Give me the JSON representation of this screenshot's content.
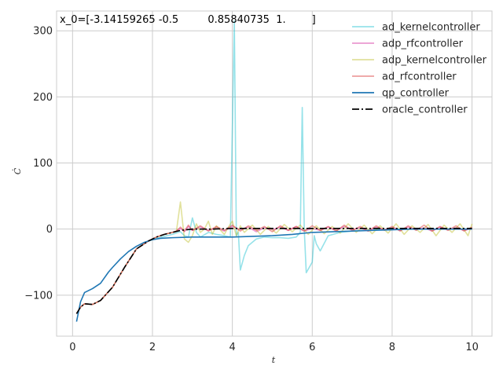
{
  "chart_data": {
    "type": "line",
    "annotation": "x_0=[-3.14159265 -0.5         0.85840735  1.        ]",
    "xlabel": "t",
    "ylabel": "Ċ",
    "xlim": [
      -0.4,
      10.5
    ],
    "ylim": [
      -162,
      330
    ],
    "xticks": [
      0,
      2,
      4,
      6,
      8,
      10
    ],
    "yticks": [
      -100,
      0,
      100,
      200,
      300
    ],
    "xtick_labels": [
      "0",
      "2",
      "4",
      "6",
      "8",
      "10"
    ],
    "ytick_labels": [
      "−100",
      "0",
      "100",
      "200",
      "300"
    ],
    "grid": true,
    "legend_position": "top-right",
    "series": [
      {
        "name": "ad_kernelcontroller",
        "color": "#17becf",
        "alpha": 0.45,
        "dash": "solid",
        "x": [
          0.1,
          0.2,
          0.3,
          0.5,
          0.7,
          1.0,
          1.3,
          1.6,
          1.9,
          2.1,
          2.3,
          2.5,
          2.7,
          2.8,
          2.9,
          3.0,
          3.1,
          3.2,
          3.4,
          3.6,
          3.8,
          3.95,
          4.05,
          4.1,
          4.15,
          4.2,
          4.3,
          4.4,
          4.6,
          4.8,
          5.0,
          5.2,
          5.4,
          5.6,
          5.7,
          5.75,
          5.8,
          5.85,
          6.0,
          6.05,
          6.1,
          6.2,
          6.4,
          6.7,
          7.0,
          7.5,
          8.0,
          8.5,
          9.0,
          9.5,
          10.0
        ],
        "y": [
          -128,
          -118,
          -113,
          -114,
          -108,
          -88,
          -58,
          -30,
          -18,
          -14,
          -11,
          -8,
          -4,
          -10,
          -12,
          17,
          -5,
          -12,
          -5,
          -8,
          -10,
          -12,
          315,
          -10,
          -5,
          -62,
          -40,
          -25,
          -15,
          -12,
          -13,
          -13,
          -14,
          -12,
          -5,
          184,
          0,
          -66,
          -50,
          -10,
          -22,
          -33,
          -10,
          -5,
          -3,
          -1,
          0,
          0,
          0,
          0,
          0
        ]
      },
      {
        "name": "adp_rfcontroller",
        "color": "#e377c2",
        "alpha": 0.75,
        "dash": "solid",
        "x": [
          0.1,
          0.2,
          0.3,
          0.5,
          0.7,
          1.0,
          1.3,
          1.6,
          1.9,
          2.1,
          2.3,
          2.5,
          2.6,
          2.7,
          2.8,
          2.9,
          3.0,
          3.2,
          3.4,
          3.6,
          3.8,
          4.0,
          4.2,
          4.4,
          4.6,
          4.8,
          5.0,
          5.2,
          5.4,
          5.6,
          5.8,
          6.0,
          6.2,
          6.4,
          6.6,
          6.8,
          7.0,
          7.2,
          7.4,
          7.6,
          7.8,
          8.0,
          8.2,
          8.4,
          8.6,
          8.8,
          9.0,
          9.2,
          9.4,
          9.6,
          9.8,
          10.0
        ],
        "y": [
          -128,
          -118,
          -113,
          -114,
          -108,
          -88,
          -58,
          -30,
          -18,
          -12,
          -8,
          -5,
          -3,
          1,
          -4,
          4,
          -2,
          3,
          -2,
          2,
          -3,
          4,
          -1,
          3,
          -4,
          2,
          -1,
          3,
          -2,
          4,
          -3,
          1,
          -2,
          3,
          -2,
          4,
          -1,
          2,
          -3,
          3,
          -1,
          2,
          -2,
          3,
          -1,
          2,
          -3,
          3,
          -1,
          2,
          -2,
          1
        ]
      },
      {
        "name": "adp_kernelcontroller",
        "color": "#bcbd22",
        "alpha": 0.45,
        "dash": "solid",
        "x": [
          0.1,
          0.2,
          0.3,
          0.5,
          0.7,
          1.0,
          1.3,
          1.6,
          1.9,
          2.1,
          2.3,
          2.5,
          2.6,
          2.7,
          2.8,
          2.9,
          3.0,
          3.1,
          3.2,
          3.3,
          3.4,
          3.5,
          3.6,
          3.8,
          3.9,
          4.0,
          4.1,
          4.2,
          4.3,
          4.5,
          4.7,
          4.9,
          5.1,
          5.3,
          5.5,
          5.7,
          5.9,
          6.1,
          6.3,
          6.5,
          6.7,
          6.9,
          7.1,
          7.3,
          7.5,
          7.7,
          7.9,
          8.1,
          8.3,
          8.5,
          8.7,
          8.9,
          9.1,
          9.3,
          9.5,
          9.7,
          9.9,
          10.0
        ],
        "y": [
          -128,
          -118,
          -113,
          -114,
          -108,
          -88,
          -58,
          -30,
          -18,
          -12,
          -8,
          -5,
          -3,
          41,
          -15,
          -20,
          -10,
          8,
          -5,
          0,
          12,
          -8,
          5,
          -8,
          3,
          12,
          -10,
          5,
          -5,
          6,
          -8,
          4,
          -6,
          7,
          -4,
          6,
          -8,
          5,
          -7,
          4,
          -6,
          8,
          -5,
          6,
          -7,
          5,
          -6,
          8,
          -8,
          5,
          -5,
          7,
          -10,
          6,
          -5,
          8,
          -10,
          8
        ]
      },
      {
        "name": "ad_rfcontroller",
        "color": "#d62728",
        "alpha": 0.45,
        "dash": "solid",
        "x": [
          0.1,
          0.2,
          0.3,
          0.5,
          0.7,
          1.0,
          1.3,
          1.6,
          1.9,
          2.1,
          2.3,
          2.5,
          2.6,
          2.7,
          2.8,
          2.9,
          3.0,
          3.2,
          3.4,
          3.6,
          3.8,
          4.0,
          4.2,
          4.4,
          4.6,
          4.8,
          5.0,
          5.2,
          5.4,
          5.6,
          5.8,
          6.0,
          6.2,
          6.4,
          6.6,
          6.8,
          7.0,
          7.2,
          7.4,
          7.6,
          7.8,
          8.0,
          8.2,
          8.4,
          8.6,
          8.8,
          9.0,
          9.2,
          9.4,
          9.6,
          9.8,
          10.0
        ],
        "y": [
          -128,
          -118,
          -113,
          -114,
          -108,
          -88,
          -58,
          -30,
          -18,
          -12,
          -8,
          -5,
          -3,
          3,
          -3,
          6,
          -2,
          5,
          -3,
          4,
          -2,
          6,
          -3,
          5,
          -2,
          4,
          -4,
          5,
          -2,
          4,
          -3,
          5,
          -2,
          4,
          -3,
          6,
          -2,
          4,
          -3,
          5,
          -2,
          4,
          -3,
          5,
          -2,
          6,
          -3,
          4,
          -2,
          5,
          -3,
          3
        ]
      },
      {
        "name": "qp_controller",
        "color": "#1f77b4",
        "alpha": 1.0,
        "dash": "solid",
        "x": [
          0.1,
          0.15,
          0.2,
          0.3,
          0.5,
          0.7,
          0.9,
          1.0,
          1.2,
          1.4,
          1.6,
          1.8,
          2.0,
          2.2,
          2.5,
          3.0,
          3.5,
          4.0,
          4.5,
          5.0,
          5.5,
          6.0,
          6.5,
          7.0,
          7.5,
          8.0,
          8.5,
          9.0,
          9.5,
          10.0
        ],
        "y": [
          -140,
          -125,
          -110,
          -96,
          -90,
          -82,
          -65,
          -58,
          -45,
          -34,
          -26,
          -20,
          -16,
          -14,
          -13,
          -12,
          -12,
          -12,
          -11,
          -10,
          -8,
          -5,
          -4,
          -3,
          -2,
          -1,
          0,
          0,
          0,
          0
        ]
      },
      {
        "name": "oracle_controller",
        "color": "#000000",
        "alpha": 1.0,
        "dash": "dashdot",
        "x": [
          0.1,
          0.2,
          0.3,
          0.5,
          0.7,
          1.0,
          1.3,
          1.6,
          1.9,
          2.1,
          2.3,
          2.5,
          2.7,
          3.0,
          3.5,
          4.0,
          5.0,
          6.0,
          7.0,
          8.0,
          9.0,
          10.0
        ],
        "y": [
          -128,
          -118,
          -113,
          -114,
          -108,
          -88,
          -58,
          -30,
          -18,
          -12,
          -8,
          -5,
          -2,
          0,
          0,
          1,
          1,
          1,
          1,
          1,
          1,
          1
        ]
      }
    ]
  }
}
